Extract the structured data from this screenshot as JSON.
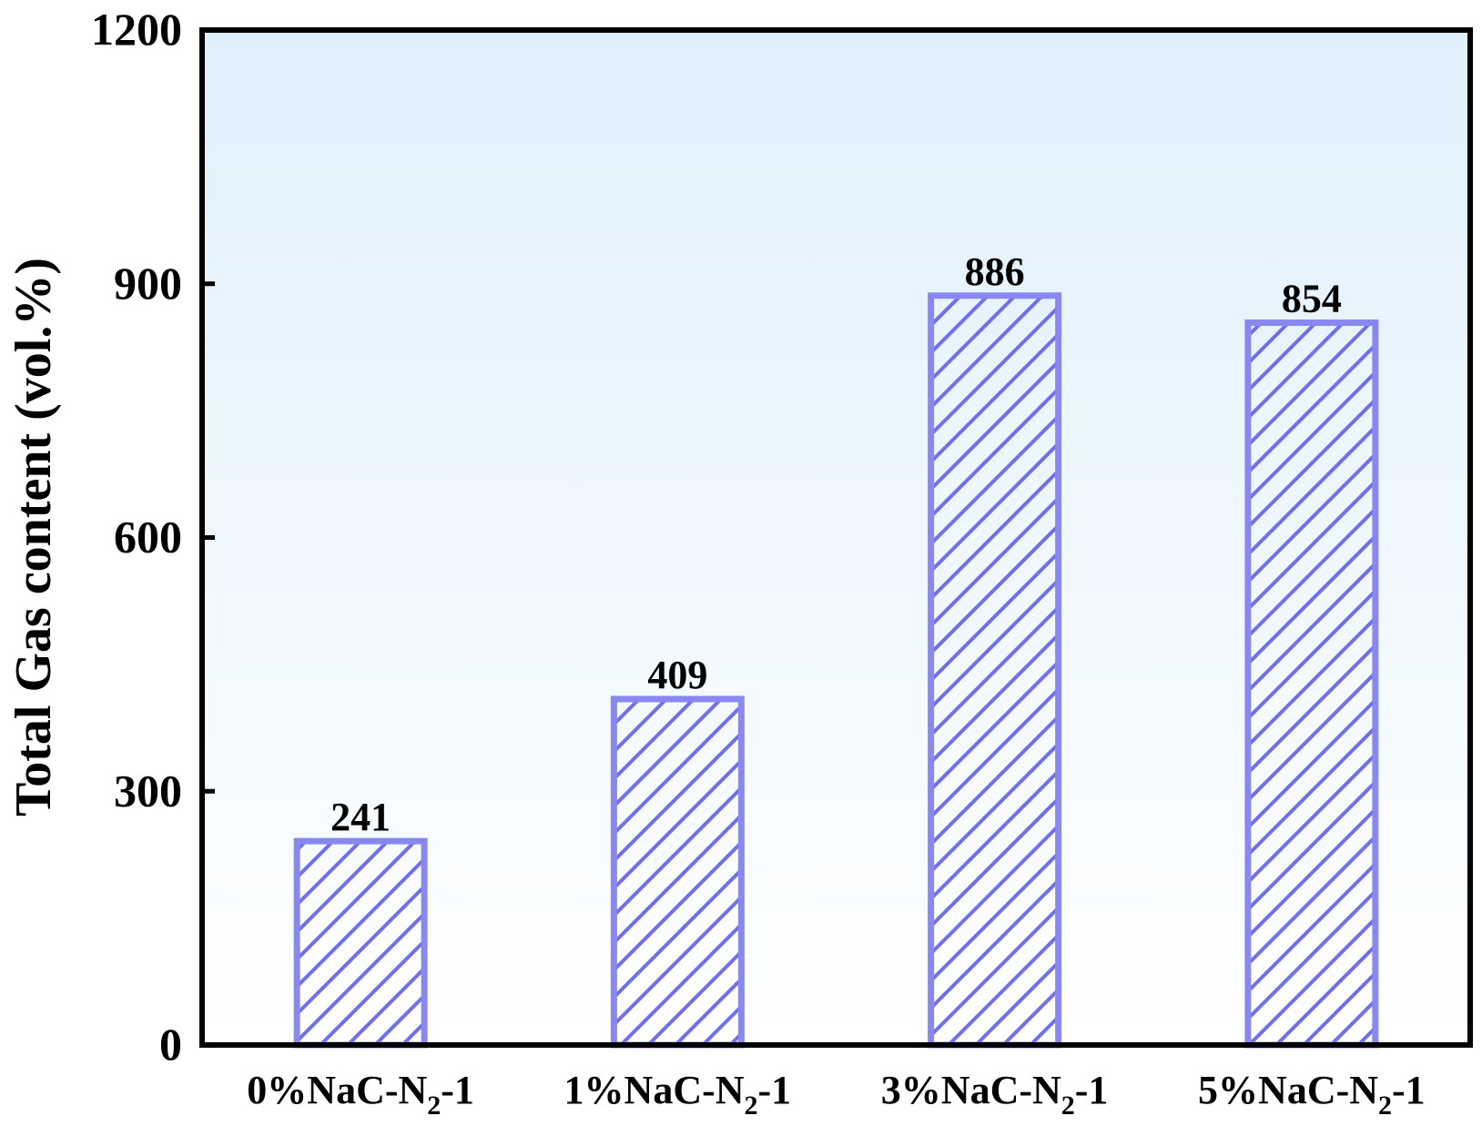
{
  "chart_data": {
    "type": "bar",
    "title": "",
    "xlabel": "",
    "ylabel": "Total Gas content (vol.%)",
    "ylim": [
      0,
      1200
    ],
    "yticks": [
      0,
      300,
      600,
      900,
      1200
    ],
    "categories": [
      {
        "prefix": "0%NaC-N",
        "sub": "2",
        "suffix": "-1"
      },
      {
        "prefix": "1%NaC-N",
        "sub": "2",
        "suffix": "-1"
      },
      {
        "prefix": "3%NaC-N",
        "sub": "2",
        "suffix": "-1"
      },
      {
        "prefix": "5%NaC-N",
        "sub": "2",
        "suffix": "-1"
      }
    ],
    "values": [
      241,
      409,
      886,
      854
    ],
    "data_labels": [
      "241",
      "409",
      "886",
      "854"
    ],
    "grid": false,
    "legend": "none",
    "colors": {
      "bar_stroke": "#8888f0",
      "hatch": "#7070ea",
      "bg_top": "#dff0fc",
      "bg_bottom": "#ffffff",
      "axis": "#000000"
    }
  }
}
